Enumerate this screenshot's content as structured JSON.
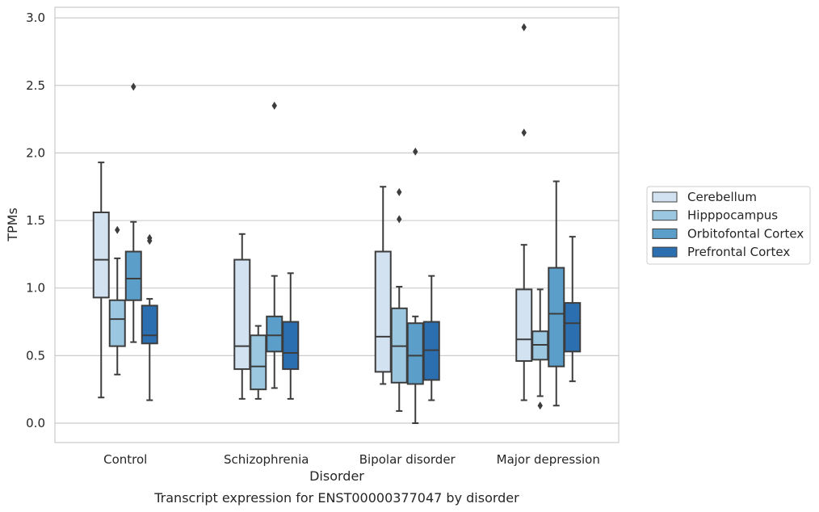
{
  "chart_data": {
    "type": "box",
    "caption": "Transcript expression for ENST00000377047 by disorder",
    "xlabel": "Disorder",
    "ylabel": "TPMs",
    "ylim": [
      -0.14,
      3.08
    ],
    "yticks": [
      "0.0",
      "0.5",
      "1.0",
      "1.5",
      "2.0",
      "2.5",
      "3.0"
    ],
    "grid": "horizontal",
    "legend_position": "right",
    "categories": [
      "Control",
      "Schizophrenia",
      "Bipolar disorder",
      "Major depression"
    ],
    "series": [
      {
        "name": "Cerebellum",
        "color": "#d2e2f1",
        "boxes": [
          {
            "whislo": 0.19,
            "q1": 0.93,
            "med": 1.21,
            "q3": 1.56,
            "whishi": 1.93,
            "fliers": []
          },
          {
            "whislo": 0.18,
            "q1": 0.4,
            "med": 0.57,
            "q3": 1.21,
            "whishi": 1.4,
            "fliers": []
          },
          {
            "whislo": 0.29,
            "q1": 0.38,
            "med": 0.64,
            "q3": 1.27,
            "whishi": 1.75,
            "fliers": []
          },
          {
            "whislo": 0.17,
            "q1": 0.46,
            "med": 0.62,
            "q3": 0.99,
            "whishi": 1.32,
            "fliers": [
              2.15,
              2.93
            ]
          }
        ]
      },
      {
        "name": "Hipppocampus",
        "color": "#9bc7e0",
        "boxes": [
          {
            "whislo": 0.36,
            "q1": 0.57,
            "med": 0.77,
            "q3": 0.91,
            "whishi": 1.22,
            "fliers": [
              1.43
            ]
          },
          {
            "whislo": 0.18,
            "q1": 0.25,
            "med": 0.42,
            "q3": 0.65,
            "whishi": 0.72,
            "fliers": []
          },
          {
            "whislo": 0.09,
            "q1": 0.3,
            "med": 0.57,
            "q3": 0.85,
            "whishi": 1.01,
            "fliers": [
              1.51,
              1.71
            ]
          },
          {
            "whislo": 0.2,
            "q1": 0.47,
            "med": 0.58,
            "q3": 0.68,
            "whishi": 0.99,
            "fliers": [
              0.13
            ]
          }
        ]
      },
      {
        "name": "Orbitofontal Cortex",
        "color": "#5b9ec9",
        "boxes": [
          {
            "whislo": 0.6,
            "q1": 0.91,
            "med": 1.07,
            "q3": 1.27,
            "whishi": 1.49,
            "fliers": [
              2.49
            ]
          },
          {
            "whislo": 0.26,
            "q1": 0.53,
            "med": 0.65,
            "q3": 0.79,
            "whishi": 1.09,
            "fliers": [
              2.35
            ]
          },
          {
            "whislo": 0.0,
            "q1": 0.29,
            "med": 0.5,
            "q3": 0.74,
            "whishi": 0.79,
            "fliers": [
              2.01
            ]
          },
          {
            "whislo": 0.13,
            "q1": 0.42,
            "med": 0.81,
            "q3": 1.15,
            "whishi": 1.79,
            "fliers": []
          }
        ]
      },
      {
        "name": "Prefrontal Cortex",
        "color": "#2c6fb0",
        "boxes": [
          {
            "whislo": 0.17,
            "q1": 0.59,
            "med": 0.65,
            "q3": 0.87,
            "whishi": 0.92,
            "fliers": [
              1.35,
              1.37
            ]
          },
          {
            "whislo": 0.18,
            "q1": 0.4,
            "med": 0.52,
            "q3": 0.75,
            "whishi": 1.11,
            "fliers": []
          },
          {
            "whislo": 0.17,
            "q1": 0.32,
            "med": 0.54,
            "q3": 0.75,
            "whishi": 1.09,
            "fliers": []
          },
          {
            "whislo": 0.31,
            "q1": 0.53,
            "med": 0.74,
            "q3": 0.89,
            "whishi": 1.38,
            "fliers": []
          }
        ]
      }
    ]
  }
}
